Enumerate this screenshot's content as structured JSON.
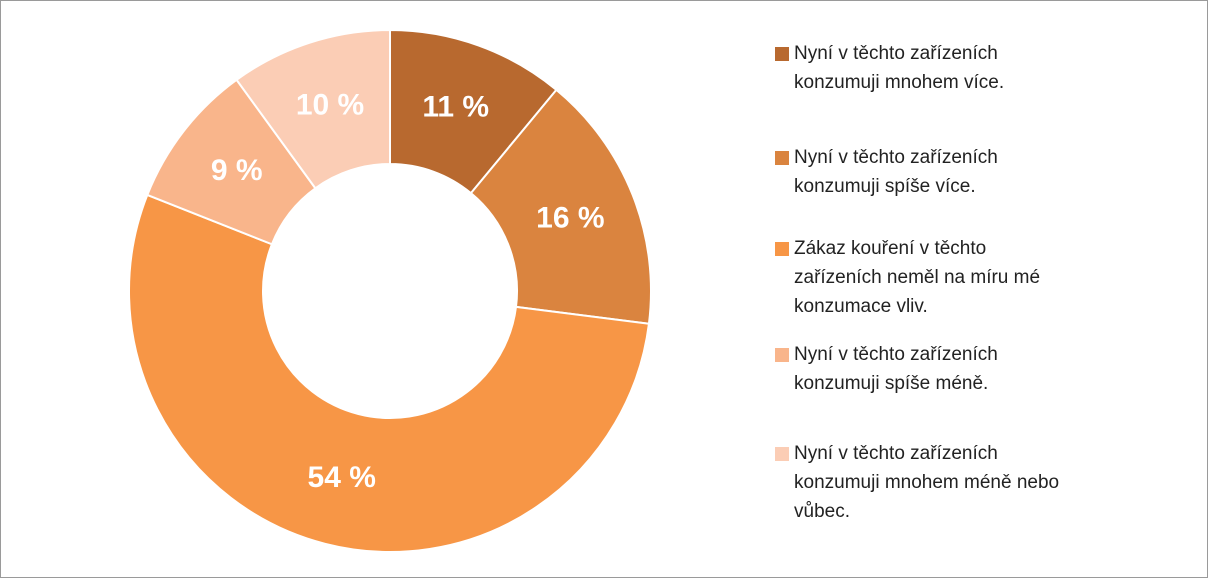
{
  "chart_data": {
    "type": "donut",
    "categories": [
      "Nyní v těchto zařízeních konzumuji mnohem více.",
      "Nyní v těchto zařízeních konzumuji spíše více.",
      "Zákaz kouření v těchto zařízeních neměl na míru mé konzumace vliv.",
      "Nyní v těchto zařízeních konzumuji spíše méně.",
      "Nyní v těchto zařízeních konzumuji mnohem méně nebo vůbec."
    ],
    "values": [
      11,
      16,
      54,
      9,
      10
    ],
    "value_labels": [
      "11 %",
      "16 %",
      "54 %",
      "9 %",
      "10 %"
    ],
    "colors": [
      "#b8692f",
      "#da843f",
      "#f79646",
      "#f9b58b",
      "#fbcdb5"
    ],
    "legend": "right"
  }
}
